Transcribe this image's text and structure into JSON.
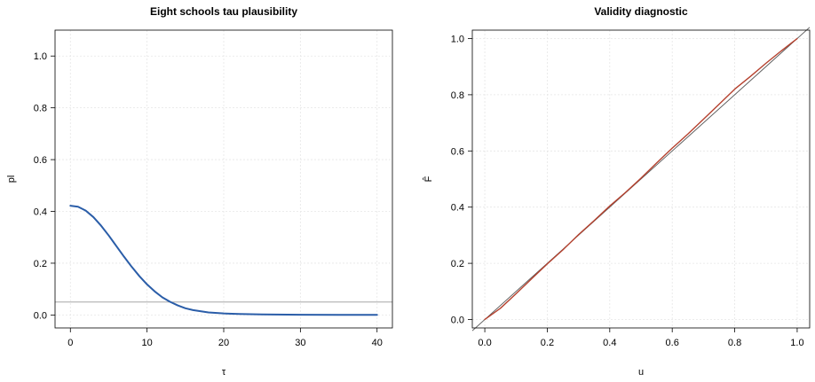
{
  "chart_data": [
    {
      "type": "line",
      "title": "Eight schools tau plausibility",
      "xlabel": "τ",
      "ylabel": "pl",
      "xlim": [
        -2,
        42
      ],
      "ylim": [
        -0.05,
        1.1
      ],
      "xticks": [
        0,
        10,
        20,
        30,
        40
      ],
      "xtick_labels": [
        "0",
        "10",
        "20",
        "30",
        "40"
      ],
      "yticks": [
        0.0,
        0.2,
        0.4,
        0.6,
        0.8,
        1.0
      ],
      "ytick_labels": [
        "0.0",
        "0.2",
        "0.4",
        "0.6",
        "0.8",
        "1.0"
      ],
      "grid": true,
      "series": [
        {
          "color": "#2a5da8",
          "x": [
            0,
            1,
            2,
            3,
            4,
            5,
            6,
            7,
            8,
            9,
            10,
            11,
            12,
            13,
            14,
            15,
            16,
            18,
            20,
            22,
            25,
            30,
            35,
            40
          ],
          "y": [
            0.422,
            0.418,
            0.403,
            0.378,
            0.345,
            0.307,
            0.266,
            0.225,
            0.186,
            0.15,
            0.118,
            0.091,
            0.068,
            0.051,
            0.037,
            0.026,
            0.019,
            0.01,
            0.006,
            0.004,
            0.002,
            0.001,
            0.0005,
            0.0003
          ]
        }
      ],
      "hlines": [
        {
          "y": 0.05,
          "color": "#999999"
        }
      ]
    },
    {
      "type": "line",
      "title": "Validity diagnostic",
      "xlabel": "u",
      "ylabel": "F̂",
      "xlim": [
        -0.04,
        1.04
      ],
      "ylim": [
        -0.03,
        1.03
      ],
      "xticks": [
        0.0,
        0.2,
        0.4,
        0.6,
        0.8,
        1.0
      ],
      "xtick_labels": [
        "0.0",
        "0.2",
        "0.4",
        "0.6",
        "0.8",
        "1.0"
      ],
      "yticks": [
        0.0,
        0.2,
        0.4,
        0.6,
        0.8,
        1.0
      ],
      "ytick_labels": [
        "0.0",
        "0.2",
        "0.4",
        "0.6",
        "0.8",
        "1.0"
      ],
      "grid": true,
      "series": [
        {
          "color": "#b5412e",
          "x": [
            0,
            0.05,
            0.1,
            0.15,
            0.2,
            0.25,
            0.3,
            0.35,
            0.4,
            0.45,
            0.5,
            0.55,
            0.6,
            0.65,
            0.7,
            0.75,
            0.8,
            0.85,
            0.9,
            0.95,
            1.0
          ],
          "y": [
            0,
            0.04,
            0.092,
            0.145,
            0.198,
            0.248,
            0.302,
            0.352,
            0.404,
            0.452,
            0.503,
            0.557,
            0.61,
            0.66,
            0.713,
            0.766,
            0.82,
            0.865,
            0.912,
            0.957,
            1.0
          ]
        }
      ],
      "reference_line": {
        "from": [
          -0.04,
          -0.04
        ],
        "to": [
          1.04,
          1.04
        ],
        "color": "#555555"
      }
    }
  ]
}
